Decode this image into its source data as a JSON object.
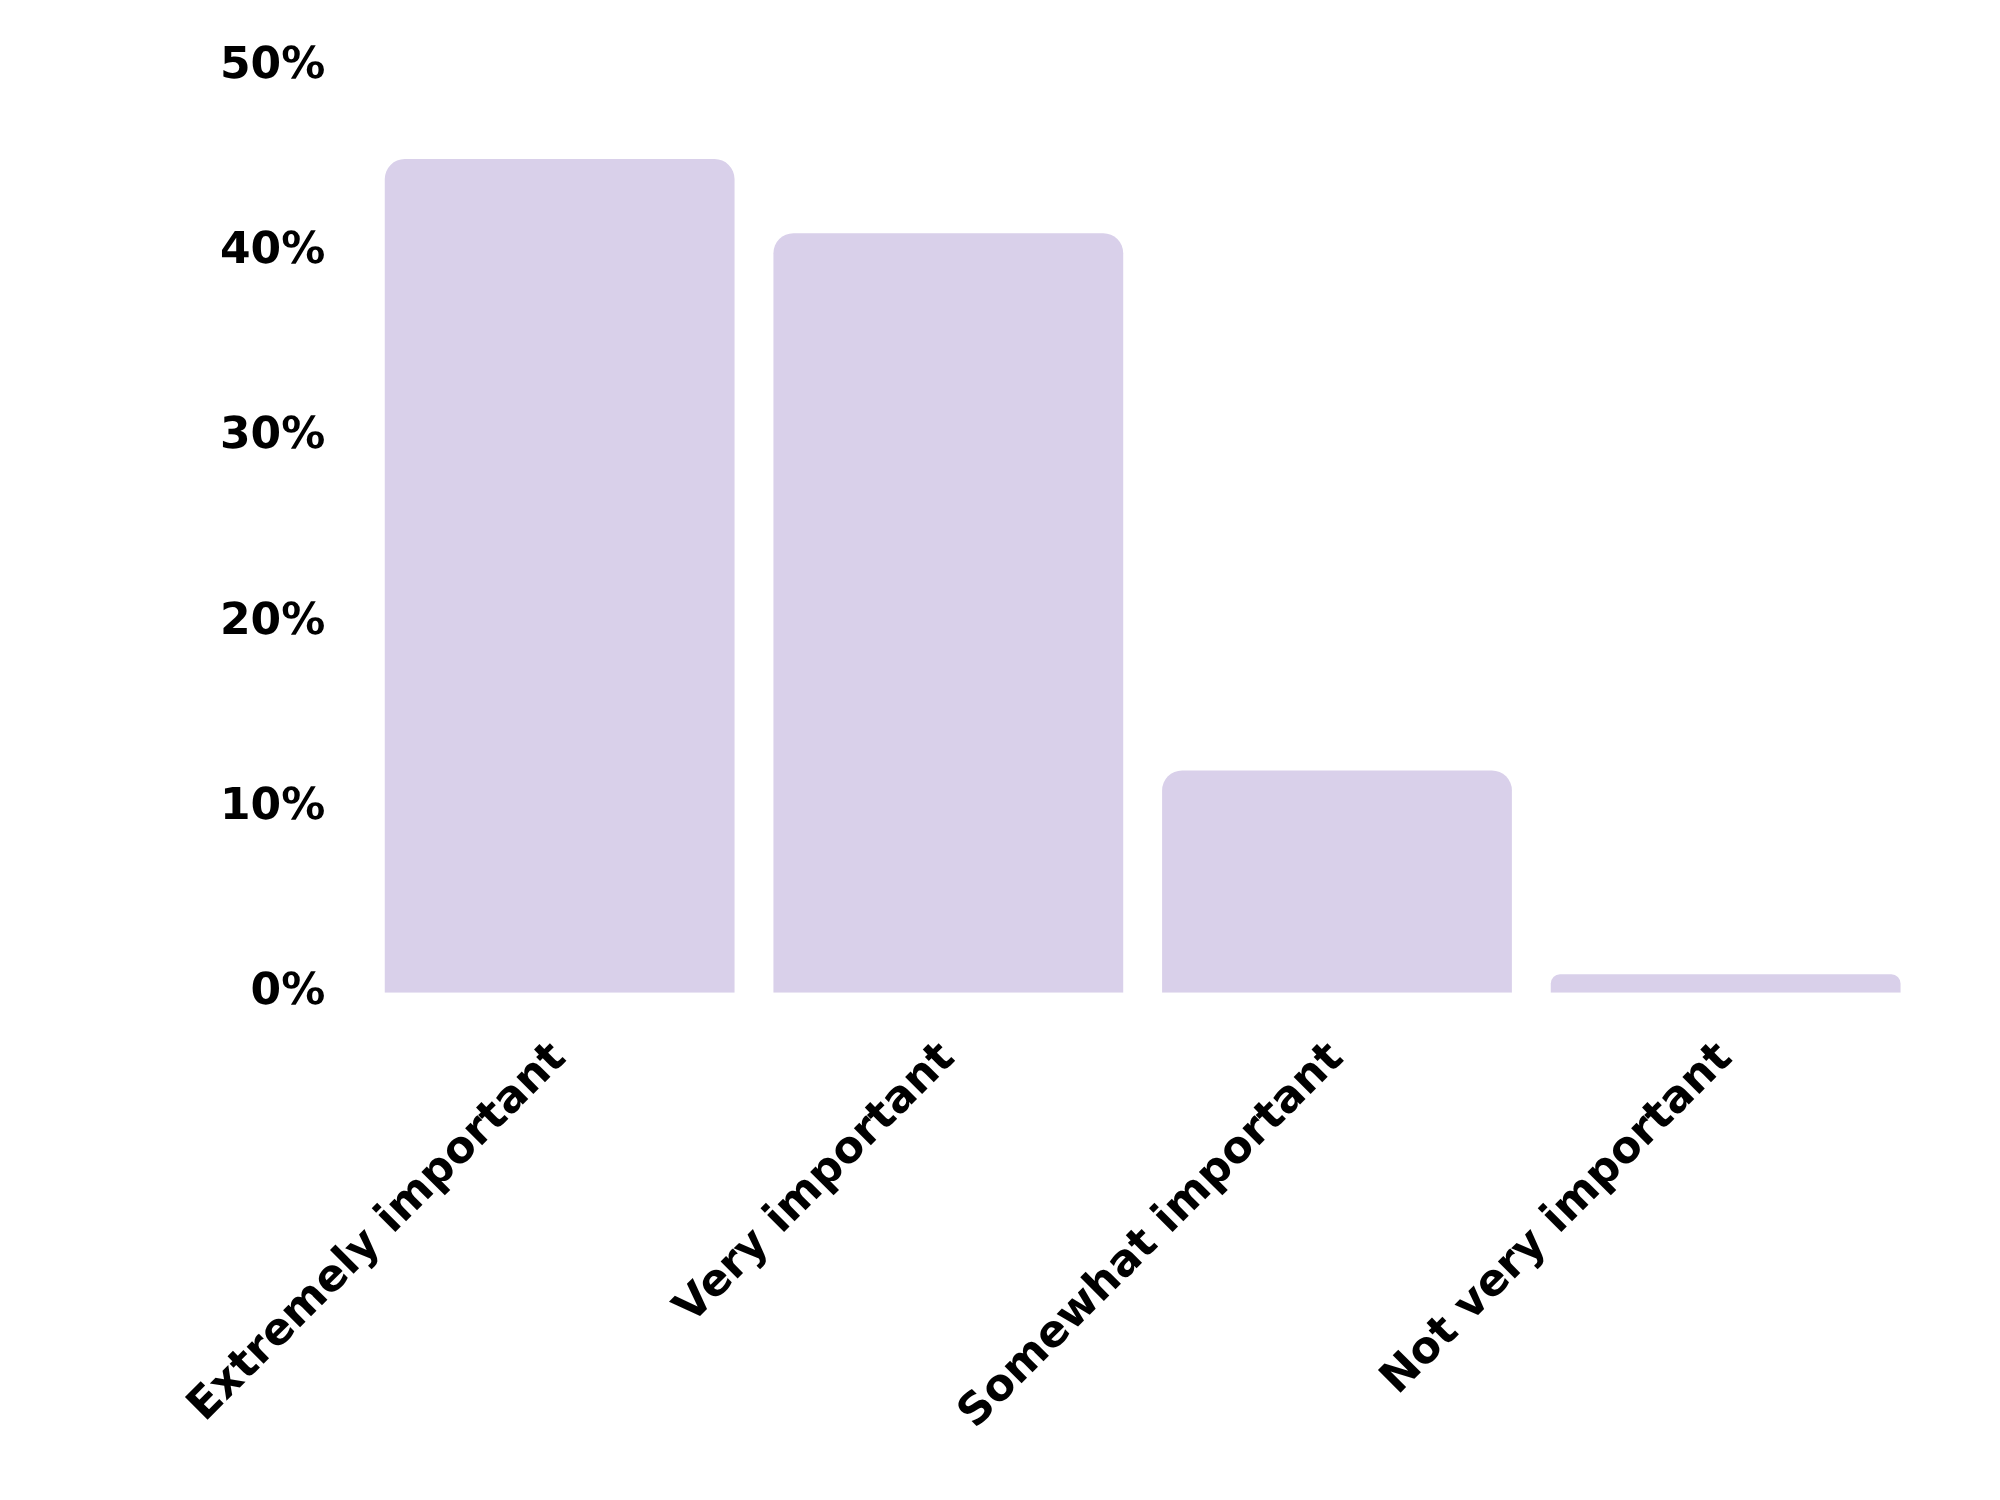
{
  "chart_data": {
    "type": "bar",
    "categories": [
      "Extremely important",
      "Very important",
      "Somewhat important",
      "Not very important"
    ],
    "values": [
      45,
      41,
      12,
      1
    ],
    "color": "#d9d0ea",
    "ylim": [
      0,
      50
    ],
    "yticks": [
      {
        "value": 0,
        "label": "0%"
      },
      {
        "value": 10,
        "label": "10%"
      },
      {
        "value": 20,
        "label": "20%"
      },
      {
        "value": 30,
        "label": "30%"
      },
      {
        "value": 40,
        "label": "40%"
      },
      {
        "value": 50,
        "label": "50%"
      }
    ],
    "grid": false,
    "legend": false
  }
}
